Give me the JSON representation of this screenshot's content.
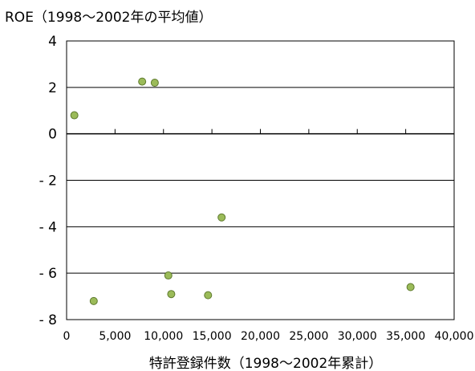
{
  "chart_data": {
    "type": "scatter",
    "title": "",
    "ylabel": "ROE（1998～2002年の平均値）",
    "xlabel": "特許登録件数（1998～2002年累計）",
    "xlim": [
      0,
      40000
    ],
    "ylim": [
      -8,
      4
    ],
    "x_ticks": [
      0,
      5000,
      10000,
      15000,
      20000,
      25000,
      30000,
      35000,
      40000
    ],
    "x_tick_labels": [
      "0",
      "5,000",
      "10,000",
      "15,000",
      "20,000",
      "25,000",
      "30,000",
      "35,000",
      "40,000"
    ],
    "y_ticks": [
      4,
      2,
      0,
      -2,
      -4,
      -6,
      -8
    ],
    "y_tick_labels": [
      "4",
      "2",
      "0",
      "- 2",
      "- 4",
      "- 6",
      "- 8"
    ],
    "grid": "horizontal",
    "marker_color": "#9BBB59",
    "marker_edge": "#5E7A2E",
    "points": [
      {
        "x": 800,
        "y": 0.8
      },
      {
        "x": 7800,
        "y": 2.25
      },
      {
        "x": 9100,
        "y": 2.2
      },
      {
        "x": 2800,
        "y": -7.2
      },
      {
        "x": 10500,
        "y": -6.1
      },
      {
        "x": 10800,
        "y": -6.9
      },
      {
        "x": 14600,
        "y": -6.95
      },
      {
        "x": 16000,
        "y": -3.6
      },
      {
        "x": 35500,
        "y": -6.6
      }
    ]
  }
}
